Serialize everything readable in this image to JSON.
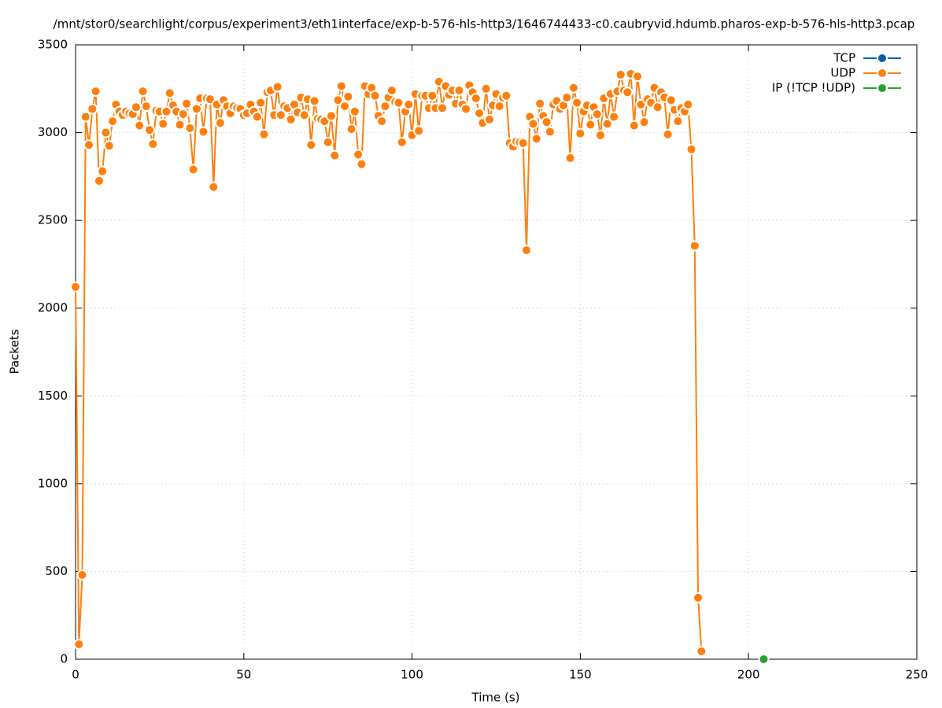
{
  "chart_data": {
    "type": "line",
    "title": "/mnt/stor0/searchlight/corpus/experiment3/eth1interface/exp-b-576-hls-http3/1646744433-c0.caubryvid.hdumb.pharos-exp-b-576-hls-http3.pcap",
    "xlabel": "Time (s)",
    "ylabel": "Packets",
    "xlim": [
      0,
      250
    ],
    "ylim": [
      0,
      3500
    ],
    "xticks": [
      0,
      50,
      100,
      150,
      200,
      250
    ],
    "yticks": [
      0,
      500,
      1000,
      1500,
      2000,
      2500,
      3000,
      3500
    ],
    "grid": true,
    "legend": "top-right",
    "series": [
      {
        "name": "TCP",
        "color": "#0060ad",
        "x": [],
        "values": []
      },
      {
        "name": "UDP",
        "color": "#ff7f0e",
        "x": [
          0,
          1,
          2,
          3,
          4,
          5,
          6,
          7,
          8,
          9,
          10,
          11,
          12,
          13,
          14,
          15,
          16,
          17,
          18,
          19,
          20,
          21,
          22,
          23,
          24,
          25,
          26,
          27,
          28,
          29,
          30,
          31,
          32,
          33,
          34,
          35,
          36,
          37,
          38,
          39,
          40,
          41,
          42,
          43,
          44,
          45,
          46,
          47,
          48,
          49,
          50,
          51,
          52,
          53,
          54,
          55,
          56,
          57,
          58,
          59,
          60,
          61,
          62,
          63,
          64,
          65,
          66,
          67,
          68,
          69,
          70,
          71,
          72,
          73,
          74,
          75,
          76,
          77,
          78,
          79,
          80,
          81,
          82,
          83,
          84,
          85,
          86,
          87,
          88,
          89,
          90,
          91,
          92,
          93,
          94,
          95,
          96,
          97,
          98,
          99,
          100,
          101,
          102,
          103,
          104,
          105,
          106,
          107,
          108,
          109,
          110,
          111,
          112,
          113,
          114,
          115,
          116,
          117,
          118,
          119,
          120,
          121,
          122,
          123,
          124,
          125,
          126,
          127,
          128,
          129,
          130,
          131,
          132,
          133,
          134,
          135,
          136,
          137,
          138,
          139,
          140,
          141,
          142,
          143,
          144,
          145,
          146,
          147,
          148,
          149,
          150,
          151,
          152,
          153,
          154,
          155,
          156,
          157,
          158,
          159,
          160,
          161,
          162,
          163,
          164,
          165,
          166,
          167,
          168,
          169,
          170,
          171,
          172,
          173,
          174,
          175,
          176,
          177,
          178,
          179,
          180,
          181,
          182,
          183,
          184,
          185,
          186
        ],
        "values": [
          2121,
          85,
          480,
          3090,
          2930,
          3135,
          3235,
          2725,
          2780,
          3000,
          2925,
          3065,
          3160,
          3120,
          3100,
          3120,
          3110,
          3105,
          3145,
          3040,
          3235,
          3150,
          3015,
          2935,
          3125,
          3120,
          3050,
          3120,
          3225,
          3155,
          3120,
          3045,
          3105,
          3165,
          3025,
          2790,
          3135,
          3195,
          3005,
          3195,
          3190,
          2690,
          3160,
          3055,
          3185,
          3150,
          3110,
          3150,
          3140,
          3135,
          3100,
          3110,
          3160,
          3120,
          3090,
          3170,
          2990,
          3230,
          3240,
          3100,
          3260,
          3100,
          3150,
          3140,
          3075,
          3160,
          3115,
          3200,
          3100,
          3190,
          2930,
          3180,
          3080,
          3075,
          3065,
          2945,
          3095,
          2870,
          3185,
          3265,
          3150,
          3205,
          3020,
          3120,
          2875,
          2820,
          3265,
          3220,
          3255,
          3210,
          3095,
          3065,
          3150,
          3200,
          3240,
          3175,
          3170,
          2945,
          3120,
          3160,
          2985,
          3220,
          3010,
          3210,
          3210,
          3140,
          3210,
          3140,
          3290,
          3140,
          3265,
          3215,
          3240,
          3165,
          3240,
          3160,
          3135,
          3270,
          3230,
          3195,
          3110,
          3055,
          3250,
          3075,
          3155,
          3220,
          3150,
          3200,
          3210,
          2940,
          2920,
          2950,
          2945,
          2940,
          2330,
          3090,
          3050,
          2965,
          3165,
          3095,
          3060,
          3005,
          3160,
          3180,
          3135,
          3155,
          3200,
          2855,
          3255,
          3170,
          2995,
          3120,
          3155,
          3045,
          3145,
          3105,
          2985,
          3195,
          3050,
          3220,
          3090,
          3235,
          3330,
          3240,
          3230,
          3335,
          3040,
          3320,
          3160,
          3060,
          3190,
          3170,
          3255,
          3145,
          3230,
          3200,
          2990,
          3185,
          3130,
          3065,
          3140,
          3120,
          3160,
          2905,
          2355,
          350,
          45
        ]
      },
      {
        "name": "IP (!TCP  !UDP)",
        "color": "#2ca02c",
        "x": [
          204.5
        ],
        "values": [
          0
        ]
      }
    ]
  }
}
